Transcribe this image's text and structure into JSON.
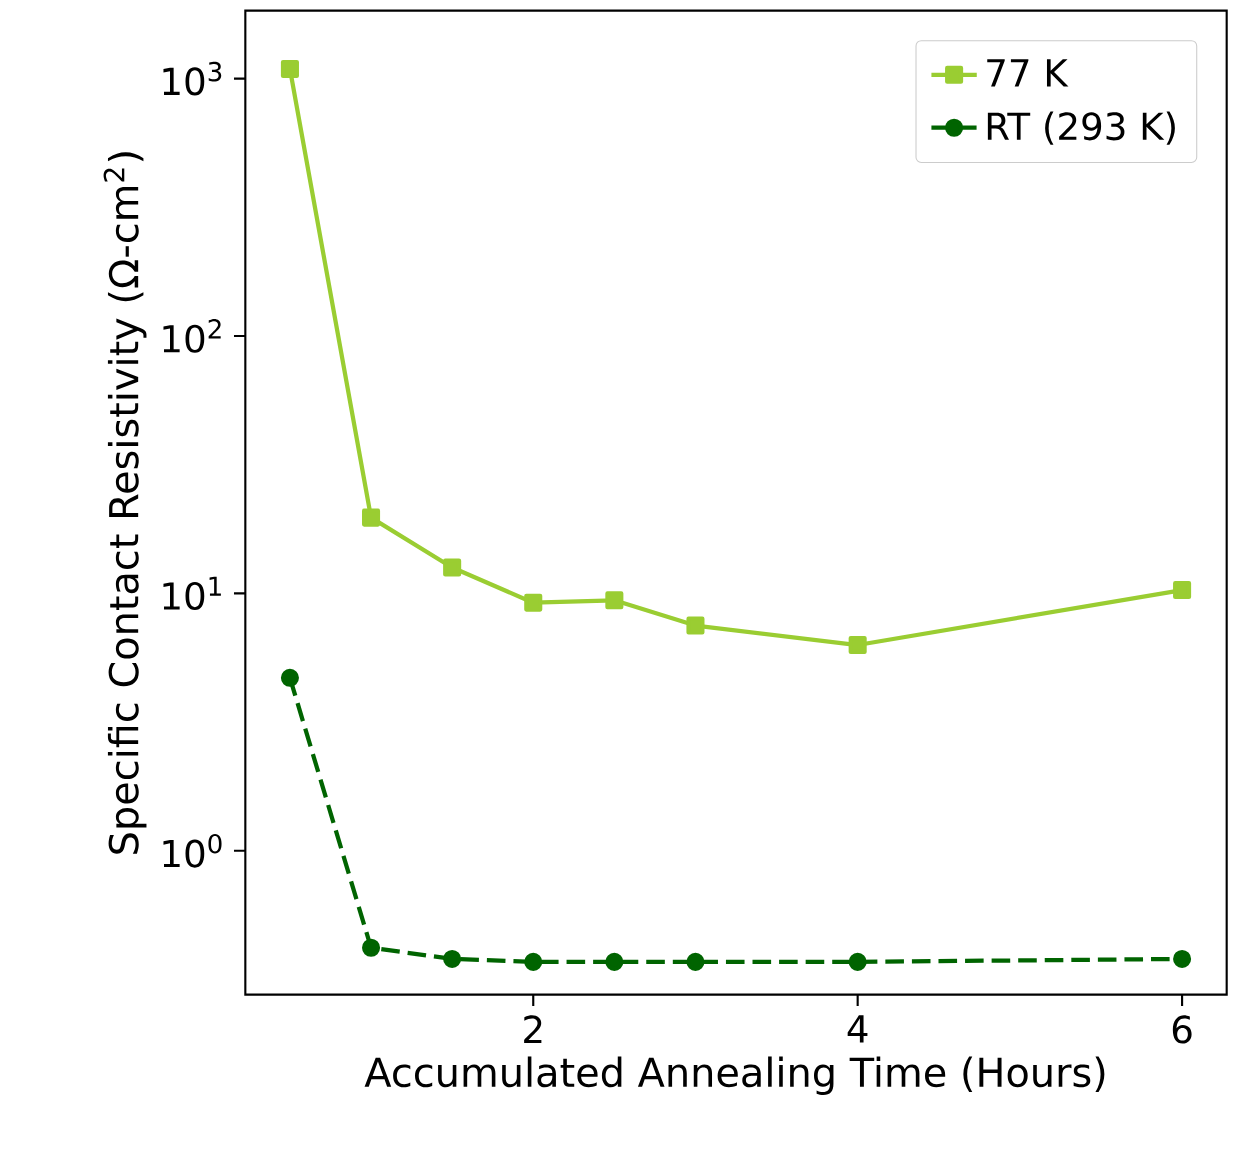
{
  "chart_data": {
    "type": "line",
    "xlabel": "Accumulated Annealing Time (Hours)",
    "ylabel": "Specific Contact Resistivity (Ω-cm$^{2}$)",
    "log": "y",
    "legend": "top right",
    "grid": false,
    "xlim": [
      0.225,
      6.275
    ],
    "xticks": [
      2,
      4,
      6
    ],
    "ylim": [
      0.276,
      1837
    ],
    "yticks": [
      {
        "value": 1,
        "label": "10$^{0}$"
      },
      {
        "value": 10,
        "label": "10$^{1}$"
      },
      {
        "value": 100,
        "label": "10$^{2}$"
      },
      {
        "value": 1000,
        "label": "10$^{3}$"
      }
    ],
    "x": [
      0.5,
      1,
      1.5,
      2,
      2.5,
      3,
      4,
      6
    ],
    "series": [
      {
        "name": "77 K",
        "color": "#9acd32",
        "marker": "square",
        "line_style": "solid",
        "values": [
          1090,
          19.7,
          12.6,
          9.2,
          9.4,
          7.5,
          6.3,
          10.3
        ]
      },
      {
        "name": "RT (293 K)",
        "color": "#006400",
        "marker": "circle",
        "line_style": "dashed",
        "values": [
          4.7,
          0.42,
          0.38,
          0.37,
          0.37,
          0.37,
          0.37,
          0.38
        ]
      }
    ]
  }
}
